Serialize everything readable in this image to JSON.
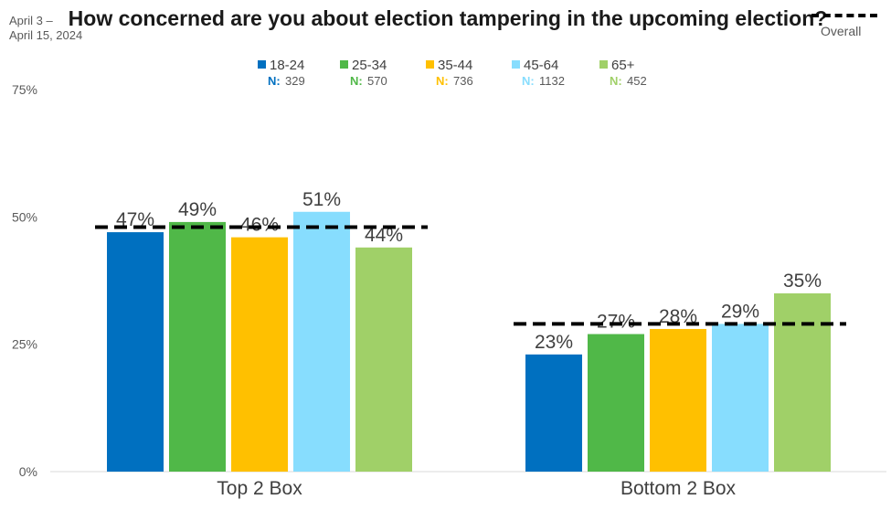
{
  "header": {
    "date_line1": "April 3 –",
    "date_line2": "April 15, 2024",
    "overall_label": "Overall"
  },
  "chart_data": {
    "type": "bar",
    "title": "How concerned are you about election tampering in the upcoming election?",
    "categories": [
      "Top 2 Box",
      "Bottom 2 Box"
    ],
    "series": [
      {
        "name": "18-24",
        "n_label": "N:",
        "n": "329",
        "color": "#0070C0",
        "values": [
          47,
          23
        ],
        "labels": [
          "47%",
          "23%"
        ]
      },
      {
        "name": "25-34",
        "n_label": "N:",
        "n": "570",
        "color": "#50B848",
        "values": [
          49,
          27
        ],
        "labels": [
          "49%",
          "27%"
        ]
      },
      {
        "name": "35-44",
        "n_label": "N:",
        "n": "736",
        "color": "#FFC000",
        "values": [
          46,
          28
        ],
        "labels": [
          "46%",
          "28%"
        ]
      },
      {
        "name": "45-64",
        "n_label": "N:",
        "n": "1132",
        "color": "#87DDFE",
        "values": [
          51,
          29
        ],
        "labels": [
          "51%",
          "29%"
        ]
      },
      {
        "name": "65+",
        "n_label": "N:",
        "n": "452",
        "color": "#A0D068",
        "values": [
          44,
          35
        ],
        "labels": [
          "44%",
          "35%"
        ]
      }
    ],
    "overall": {
      "name": "Overall",
      "values": [
        48,
        29
      ],
      "style": "dashed",
      "color": "#000000"
    },
    "yticks": [
      0,
      25,
      50,
      75
    ],
    "ytick_labels": [
      "0%",
      "25%",
      "50%",
      "75%"
    ],
    "ylim": [
      0,
      75
    ],
    "grid": false,
    "legend_position": "top-center"
  }
}
